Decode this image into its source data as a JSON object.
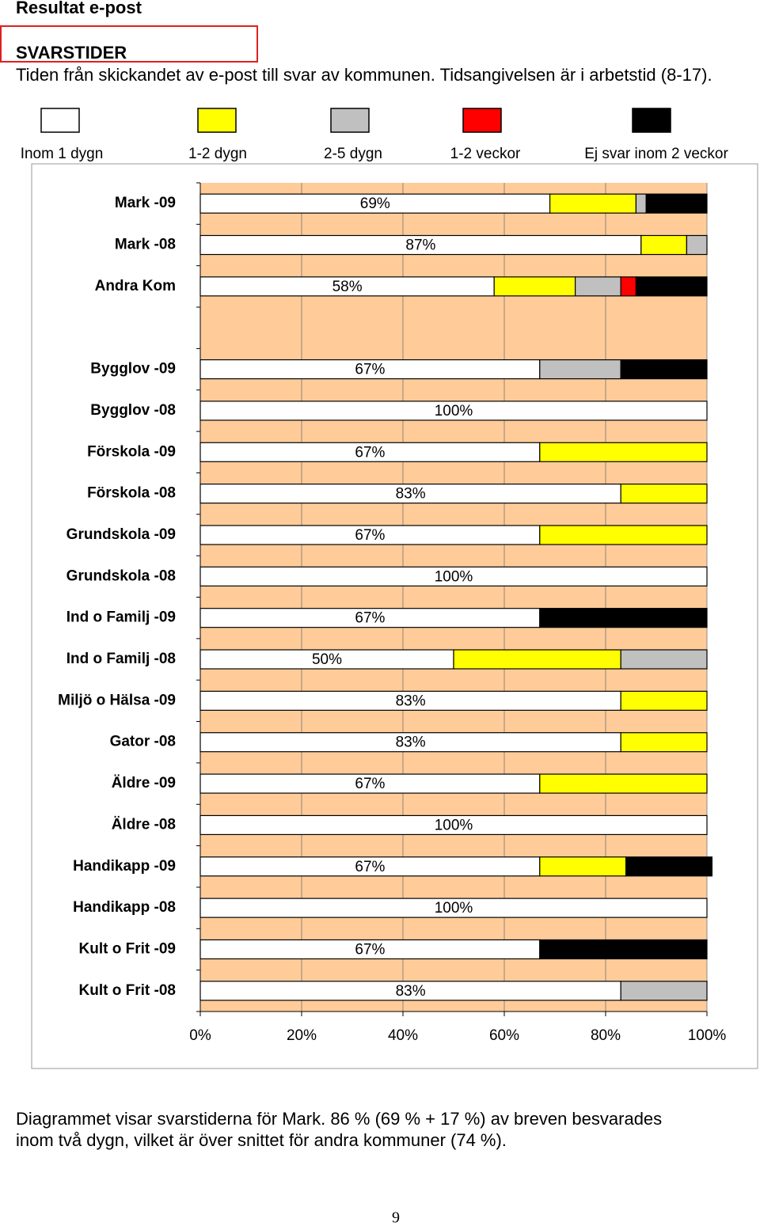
{
  "heading": "Resultat e-post",
  "section_title": "SVARSTIDER",
  "intro": "Tiden från skickandet av e-post till svar av kommunen. Tidsangivelsen är i arbetstid (8-17).",
  "chart_data": {
    "type": "stacked-bar-horizontal",
    "categories": [
      "Mark -09",
      "Mark -08",
      "Andra Kom",
      null,
      "Bygglov -09",
      "Bygglov -08",
      "Förskola -09",
      "Förskola -08",
      "Grundskola -09",
      "Grundskola -08",
      "Ind o Familj -09",
      "Ind o Familj -08",
      "Miljö o Hälsa -09",
      "Gator -08",
      "Äldre -09",
      "Äldre -08",
      "Handikapp -09",
      "Handikapp -08",
      "Kult o Frit -09",
      "Kult o Frit -08"
    ],
    "series": [
      {
        "name": "Inom 1 dygn",
        "color": "#ffffff",
        "values": [
          69,
          87,
          58,
          null,
          67,
          100,
          67,
          83,
          67,
          100,
          67,
          50,
          83,
          83,
          67,
          100,
          67,
          100,
          67,
          83
        ],
        "value_labels": [
          "69%",
          "87%",
          "58%",
          null,
          "67%",
          "100%",
          "67%",
          "83%",
          "67%",
          "100%",
          "67%",
          "50%",
          "83%",
          "83%",
          "67%",
          "100%",
          "67%",
          "100%",
          "67%",
          "83%"
        ]
      },
      {
        "name": "1-2 dygn",
        "color": "#ffff00",
        "values": [
          17,
          9,
          16,
          null,
          0,
          0,
          33,
          17,
          33,
          0,
          0,
          33,
          17,
          17,
          33,
          0,
          17,
          0,
          0,
          0
        ]
      },
      {
        "name": "2-5 dygn",
        "color": "#c0c0c0",
        "values": [
          2,
          4,
          9,
          null,
          16,
          0,
          0,
          0,
          0,
          0,
          0,
          17,
          0,
          0,
          0,
          0,
          0,
          0,
          0,
          17
        ]
      },
      {
        "name": "1-2 veckor",
        "color": "#ff0000",
        "values": [
          0,
          0,
          3,
          null,
          0,
          0,
          0,
          0,
          0,
          0,
          0,
          0,
          0,
          0,
          0,
          0,
          0,
          0,
          0,
          0
        ]
      },
      {
        "name": "Ej svar inom 2 veckor",
        "color": "#000000",
        "values": [
          12,
          0,
          14,
          null,
          17,
          0,
          0,
          0,
          0,
          0,
          33,
          0,
          0,
          0,
          0,
          0,
          17,
          0,
          33,
          0
        ]
      }
    ],
    "xlim": [
      0,
      100
    ],
    "xticks": [
      {
        "value": 0,
        "label": "0%"
      },
      {
        "value": 20,
        "label": "20%"
      },
      {
        "value": 40,
        "label": "40%"
      },
      {
        "value": 60,
        "label": "60%"
      },
      {
        "value": 80,
        "label": "80%"
      },
      {
        "value": 100,
        "label": "100%"
      }
    ],
    "grid": true,
    "plot_background": "#ffcc99"
  },
  "caption": [
    "Diagrammet visar svarstiderna för Mark. 86 % (69 % + 17 %) av breven besvarades",
    "inom två dygn, vilket är över snittet för andra kommuner (74 %)."
  ],
  "page_number": "9"
}
